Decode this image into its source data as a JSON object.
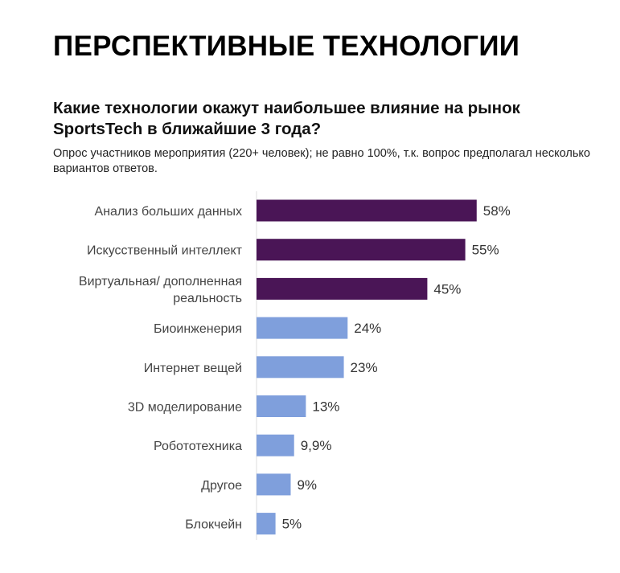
{
  "header": {
    "title": "ПЕРСПЕКТИВНЫЕ ТЕХНОЛОГИИ",
    "question": "Какие технологии окажут наибольшее влияние на рынок SportsTech в ближайшие 3 года?",
    "note": "Опрос участников мероприятия (220+ человек); не равно 100%, т.к. вопрос предполагал несколько вариантов ответов."
  },
  "colors": {
    "top": "#4a1556",
    "rest": "#7f9fdc"
  },
  "chart_data": {
    "type": "bar",
    "orientation": "horizontal",
    "title": "",
    "xlabel": "",
    "ylabel": "",
    "categories": [
      [
        "Анализ больших данных"
      ],
      [
        "Искусственный интеллект"
      ],
      [
        "Виртуальная/ дополненная",
        "реальность"
      ],
      [
        "Биоинженерия"
      ],
      [
        "Интернет вещей"
      ],
      [
        "3D моделирование"
      ],
      [
        "Робототехника"
      ],
      [
        "Другое"
      ],
      [
        "Блокчейн"
      ]
    ],
    "values": [
      58,
      55,
      45,
      24,
      23,
      13,
      9.9,
      9,
      5
    ],
    "data_labels": [
      "58%",
      "55%",
      "45%",
      "24%",
      "23%",
      "13%",
      "9,9%",
      "9%",
      "5%"
    ],
    "highlight_top": 3,
    "xlim": [
      0,
      100
    ],
    "grid": false
  }
}
